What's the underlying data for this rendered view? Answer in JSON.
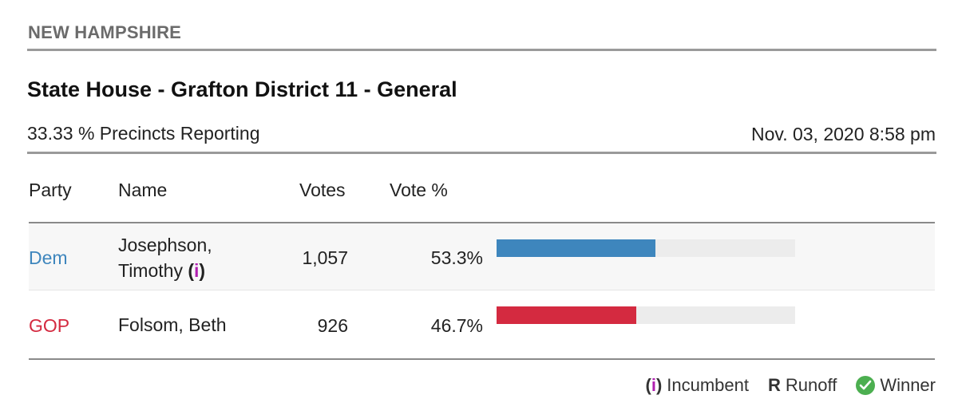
{
  "header": {
    "state": "NEW HAMPSHIRE",
    "race_title": "State House - Grafton District 11 - General",
    "precincts": "33.33 % Precincts Reporting",
    "timestamp": "Nov. 03, 2020 8:58 pm"
  },
  "table": {
    "columns": [
      "Party",
      "Name",
      "Votes",
      "Vote %"
    ],
    "rows": [
      {
        "party": "Dem",
        "party_color": "#3e86bd",
        "name_line1": "Josephson,",
        "name_line2": "Timothy",
        "incumbent": true,
        "votes": "1,057",
        "pct_label": "53.3%",
        "pct_value": 53.3,
        "bar_color": "#3e86bd"
      },
      {
        "party": "GOP",
        "party_color": "#d42a40",
        "name_line1": "Folsom, Beth",
        "name_line2": "",
        "incumbent": false,
        "votes": "926",
        "pct_label": "46.7%",
        "pct_value": 46.7,
        "bar_color": "#d42a40"
      }
    ]
  },
  "legend": {
    "incumbent_open": "(",
    "incumbent_i": "i",
    "incumbent_close": ")",
    "incumbent_label": "Incumbent",
    "runoff_symbol": "R",
    "runoff_label": "Runoff",
    "winner_icon": "check-circle-icon",
    "winner_label": "Winner",
    "incumbent_color": "#b01fb0",
    "winner_color": "#4caf50"
  }
}
